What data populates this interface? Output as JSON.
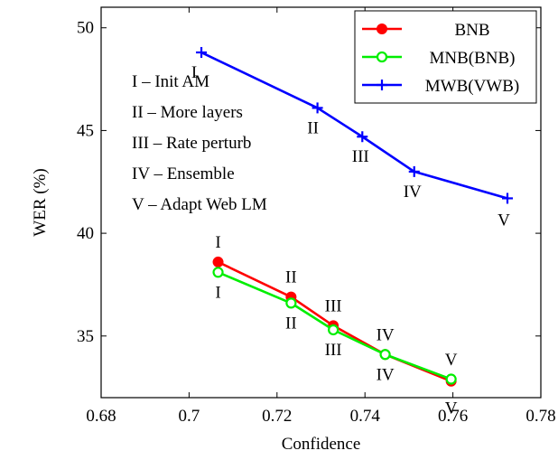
{
  "chart_data": {
    "type": "line",
    "xlabel": "Confidence",
    "ylabel": "WER (%)",
    "xlim": [
      0.68,
      0.78
    ],
    "ylim": [
      32,
      51
    ],
    "xticks": [
      "0.68",
      "0.7",
      "0.72",
      "0.74",
      "0.76",
      "0.78"
    ],
    "yticks": [
      "35",
      "40",
      "45",
      "50"
    ],
    "xtick_values": [
      0.68,
      0.7,
      0.72,
      0.74,
      0.76,
      0.78
    ],
    "ytick_values": [
      35,
      40,
      45,
      50
    ],
    "grid": false,
    "legend_position": "top-right",
    "series": [
      {
        "name": "BNB",
        "color": "#ff0000",
        "marker": "filled-circle",
        "x": [
          0.7066,
          0.7232,
          0.7328,
          0.7446,
          0.7596
        ],
        "y": [
          38.6,
          36.9,
          35.5,
          34.1,
          32.8
        ],
        "labels": [
          "I",
          "II",
          "III",
          "IV",
          "V"
        ]
      },
      {
        "name": "MNB(BNB)",
        "color": "#00ee00",
        "marker": "open-circle",
        "x": [
          0.7066,
          0.7232,
          0.7328,
          0.7446,
          0.7596
        ],
        "y": [
          38.1,
          36.6,
          35.3,
          34.1,
          32.9
        ],
        "labels": [
          "I",
          "II",
          "III",
          "IV",
          "V"
        ]
      },
      {
        "name": "MWB(VWB)",
        "color": "#0000ff",
        "marker": "plus",
        "x": [
          0.7028,
          0.7292,
          0.7394,
          0.7512,
          0.7724
        ],
        "y": [
          48.8,
          46.1,
          44.7,
          43.0,
          41.7
        ],
        "labels": [
          "I",
          "II",
          "III",
          "IV",
          "V"
        ]
      }
    ],
    "annotations": [
      "I – Init AM",
      "II – More layers",
      "III – Rate perturb",
      "IV – Ensemble",
      "V – Adapt Web LM"
    ]
  }
}
